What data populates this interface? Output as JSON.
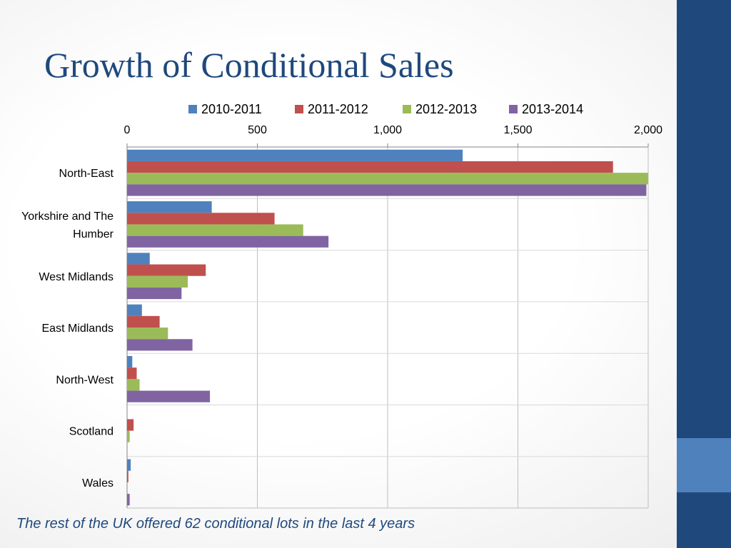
{
  "slide": {
    "title": "Growth of Conditional Sales",
    "footnote": "The rest of the UK offered 62 conditional lots in the last 4 years"
  },
  "colors": {
    "side_band": "#1f497d",
    "side_accent": "#4f81bd",
    "title": "#1f497d"
  },
  "chart_data": {
    "type": "bar",
    "orientation": "horizontal",
    "title": "",
    "xlabel": "",
    "ylabel": "",
    "xlim": [
      0,
      2000
    ],
    "x_ticks": [
      0,
      500,
      1000,
      1500,
      2000
    ],
    "x_tick_labels": [
      "0",
      "500",
      "1,000",
      "1,500",
      "2,000"
    ],
    "x_axis_position": "top",
    "grid": true,
    "legend_position": "top",
    "categories": [
      [
        "North-East"
      ],
      [
        "Yorkshire and The",
        "Humber"
      ],
      [
        "West Midlands"
      ],
      [
        "East Midlands"
      ],
      [
        "North-West"
      ],
      [
        "Scotland"
      ],
      [
        "Wales"
      ]
    ],
    "series": [
      {
        "name": "2010-2011",
        "color": "#4f81bd",
        "values": [
          1288,
          325,
          87,
          57,
          20,
          0,
          14
        ]
      },
      {
        "name": "2011-2012",
        "color": "#c0504d",
        "values": [
          1865,
          566,
          302,
          125,
          37,
          25,
          5
        ]
      },
      {
        "name": "2012-2013",
        "color": "#9bbb59",
        "values": [
          2000,
          676,
          233,
          157,
          48,
          10,
          0
        ]
      },
      {
        "name": "2013-2014",
        "color": "#8064a2",
        "values": [
          1993,
          773,
          209,
          251,
          318,
          0,
          10
        ]
      }
    ]
  }
}
